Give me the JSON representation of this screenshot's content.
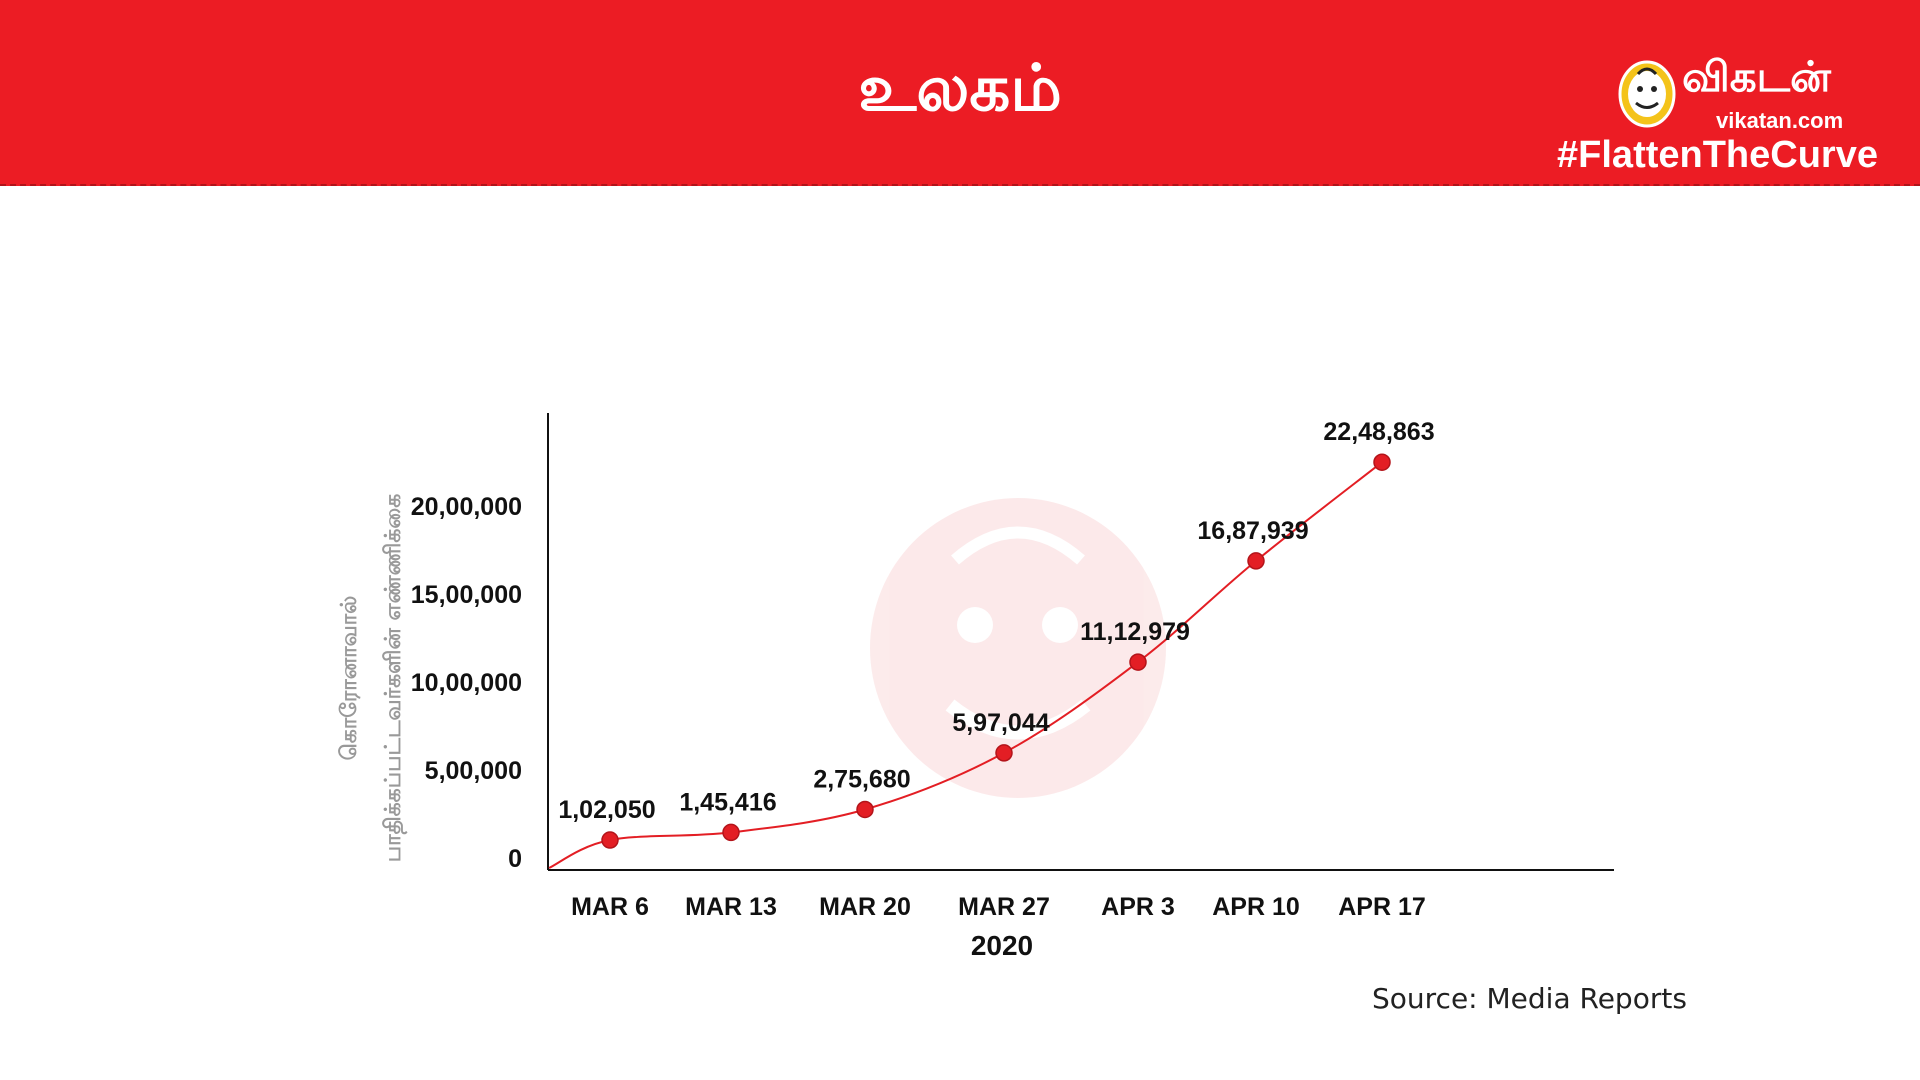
{
  "header": {
    "title": "உலகம்",
    "background_color": "#ec1c24",
    "brand_name": "விகடன்",
    "brand_url": "vikatan.com",
    "hashtag": "#FlattenTheCurve",
    "logo_icon": "vikatan-mascot-icon"
  },
  "source": "Source: Media Reports",
  "watermark_icon": "vikatan-mascot-watermark",
  "chart_data": {
    "type": "line",
    "title": "",
    "ylabel_lines": [
      "கொரோனாவால்",
      "பாதிக்கப்பட்டவர்களின் எண்ணிக்கை"
    ],
    "xlabel": "2020",
    "categories": [
      "MAR 6",
      "MAR 13",
      "MAR 20",
      "MAR 27",
      "APR 3",
      "APR 10",
      "APR 17"
    ],
    "values": [
      102050,
      145416,
      275680,
      597044,
      1112979,
      1687939,
      2248863
    ],
    "data_labels": [
      "1,02,050",
      "1,45,416",
      "2,75,680",
      "5,97,044",
      "11,12,979",
      "16,87,939",
      "22,48,863"
    ],
    "yticks": [
      0,
      500000,
      1000000,
      1500000,
      2000000
    ],
    "ytick_labels": [
      "0",
      "5,00,000",
      "10,00,000",
      "15,00,000",
      "20,00,000"
    ],
    "ylim": [
      0,
      2600000
    ],
    "grid": false,
    "line_color": "#e31e24",
    "marker_color": "#e31e24"
  }
}
